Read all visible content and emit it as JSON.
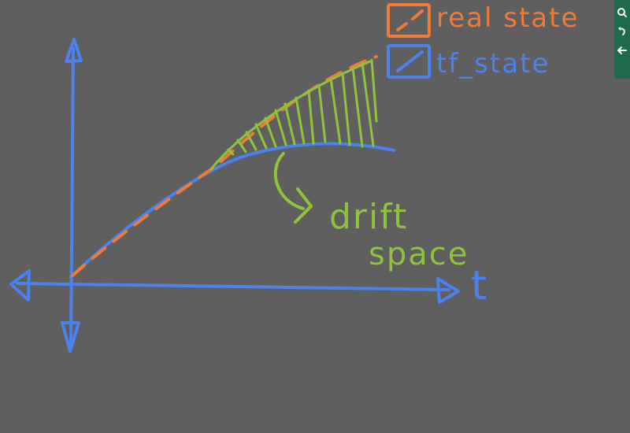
{
  "legend": {
    "real_label": "real state",
    "tf_label": "tf_state"
  },
  "axis": {
    "t_label": "t"
  },
  "annotation": {
    "line1": "drift",
    "line2": "space"
  },
  "colors": {
    "background": "#5f5f5f",
    "blue": "#4b82f0",
    "orange": "#f07a36",
    "green": "#8ec33c",
    "toolbar": "#1f6a4d"
  },
  "toolbar": {
    "icons": [
      "zoom-icon",
      "undo-icon",
      "back-icon"
    ]
  }
}
